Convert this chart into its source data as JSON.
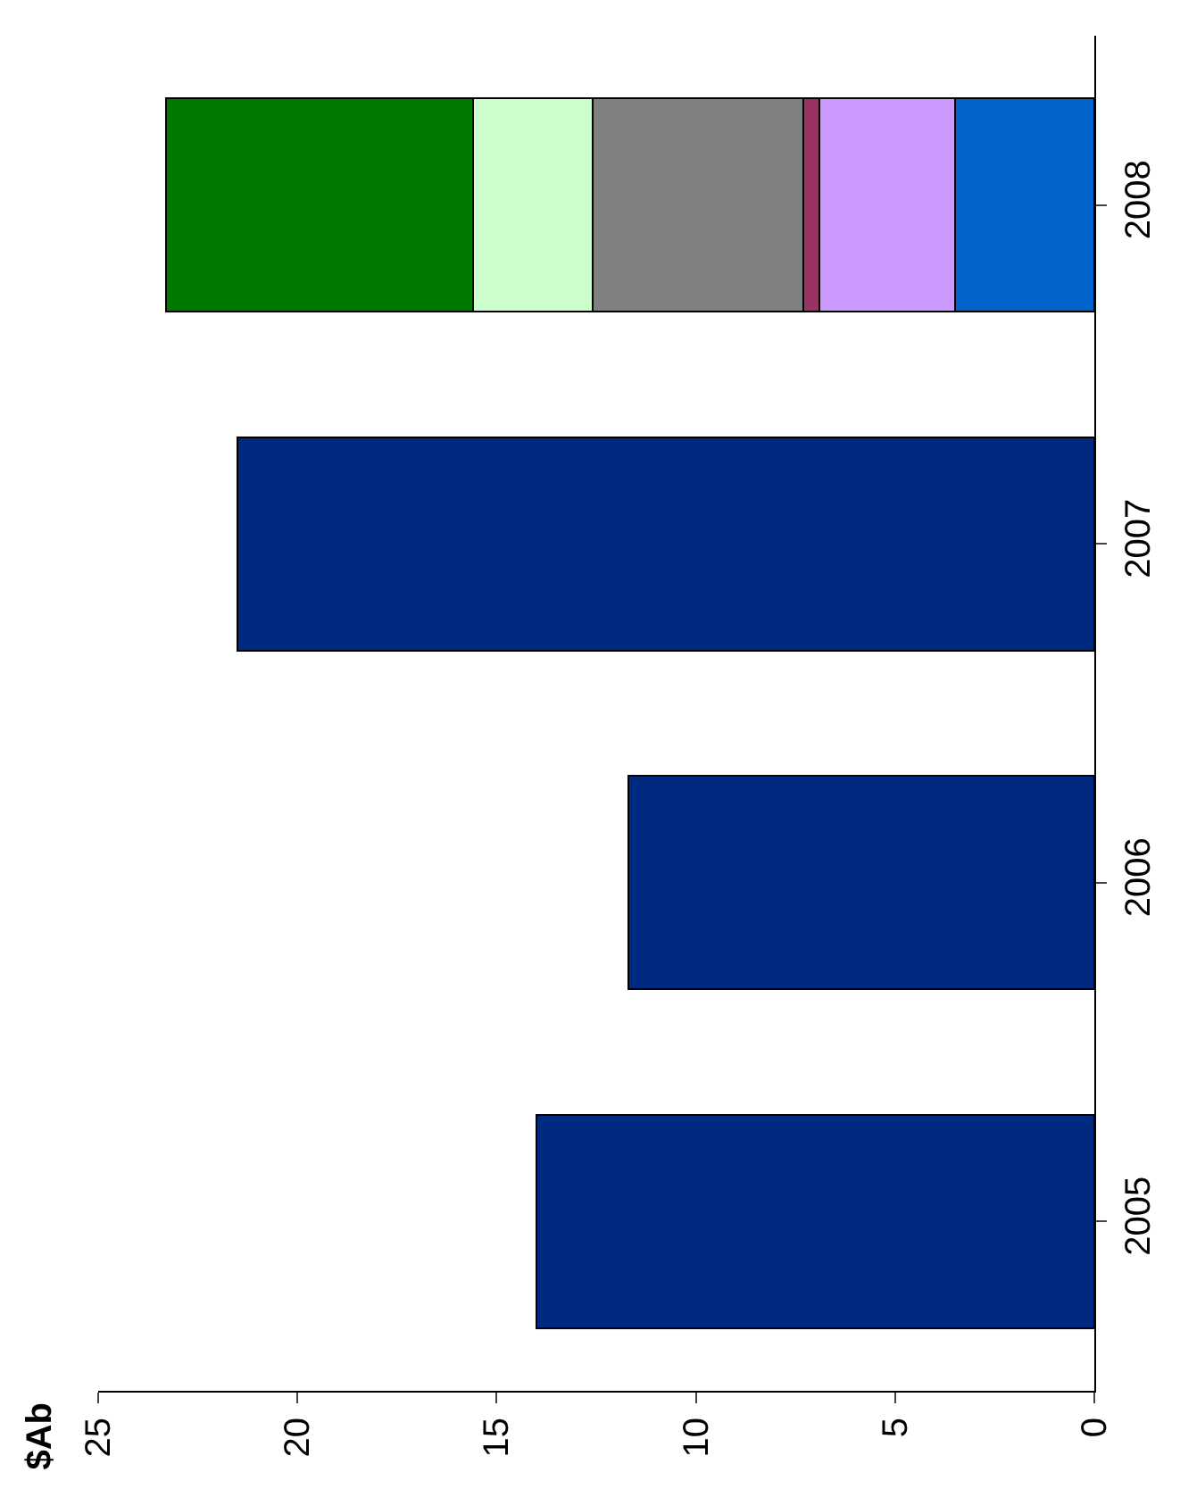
{
  "chart_data": {
    "type": "bar",
    "orientation": "horizontal",
    "stacked": true,
    "annotations": [
      "$Ab"
    ],
    "categories": [
      "2008",
      "2007",
      "2006",
      "2005"
    ],
    "series": [
      {
        "color": "#002a7f",
        "values": [
          null,
          21.5,
          11.7,
          14.0
        ]
      },
      {
        "color": "#0064cc",
        "values": [
          3.5,
          null,
          null,
          null
        ]
      },
      {
        "color": "#cc99ff",
        "values": [
          3.4,
          null,
          null,
          null
        ]
      },
      {
        "color": "#993366",
        "values": [
          0.4,
          null,
          null,
          null
        ]
      },
      {
        "color": "#808080",
        "values": [
          5.3,
          null,
          null,
          null
        ]
      },
      {
        "color": "#ccffcc",
        "values": [
          3.0,
          null,
          null,
          null
        ]
      },
      {
        "color": "#007800",
        "values": [
          7.7,
          null,
          null,
          null
        ]
      }
    ],
    "xlim": [
      25,
      0
    ],
    "xticks": [
      0,
      5,
      10,
      15,
      20,
      25
    ]
  }
}
